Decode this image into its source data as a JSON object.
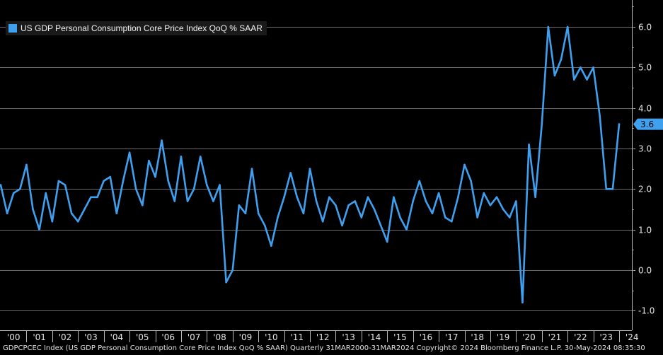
{
  "legend": {
    "label": "US GDP Personal Consumption Core Price Index QoQ % SAAR",
    "color": "#3fa0f0"
  },
  "footer": {
    "text": "GDPCPCEC Index (US GDP Personal Consumption Core Price Index QoQ % SAAR)  Quarterly 31MAR2000-31MAR2024 Copyright© 2024 Bloomberg Finance L.P.  30-May-2024 08:35:30"
  },
  "colors": {
    "line": "#3fa0f0",
    "grid": "#6a6a6a",
    "badge": "#3fa0f0",
    "background": "#000000"
  },
  "chart_data": {
    "type": "line",
    "title": "US GDP Personal Consumption Core Price Index QoQ % SAAR",
    "xlabel": "",
    "ylabel": "",
    "ylim": [
      -1.5,
      6.6
    ],
    "yticks": [
      -1.0,
      0.0,
      1.0,
      2.0,
      3.0,
      4.0,
      5.0,
      6.0
    ],
    "ytick_labels": [
      "-1.0",
      "0.0",
      "1.0",
      "2.0",
      "3.0",
      "4.0",
      "5.0",
      "6.0"
    ],
    "xticks": [
      "'00",
      "'01",
      "'02",
      "'03",
      "'04",
      "'05",
      "'06",
      "'07",
      "'08",
      "'09",
      "'10",
      "'11",
      "'12",
      "'13",
      "'14",
      "'15",
      "'16",
      "'17",
      "'18",
      "'19",
      "'20",
      "'21",
      "'22",
      "'23",
      "'24"
    ],
    "last_value_label": "3.6",
    "series": [
      {
        "name": "US GDP Personal Consumption Core Price Index QoQ % SAAR",
        "values": [
          2.1,
          1.4,
          1.9,
          2.0,
          2.6,
          1.5,
          1.0,
          1.9,
          1.2,
          2.2,
          2.1,
          1.4,
          1.2,
          1.5,
          1.8,
          1.8,
          2.2,
          2.3,
          1.4,
          2.2,
          2.9,
          2.0,
          1.6,
          2.7,
          2.3,
          3.2,
          2.2,
          1.7,
          2.8,
          1.7,
          2.0,
          2.8,
          2.1,
          1.7,
          2.1,
          -0.3,
          0.0,
          1.6,
          1.4,
          2.5,
          1.4,
          1.1,
          0.6,
          1.3,
          1.8,
          2.4,
          1.8,
          1.4,
          2.5,
          1.7,
          1.2,
          1.8,
          1.6,
          1.1,
          1.6,
          1.7,
          1.3,
          1.8,
          1.5,
          1.1,
          0.7,
          1.8,
          1.3,
          1.0,
          1.7,
          2.2,
          1.7,
          1.4,
          1.9,
          1.3,
          1.2,
          1.8,
          2.6,
          2.2,
          1.3,
          1.9,
          1.6,
          1.8,
          1.5,
          1.3,
          1.7,
          -0.8,
          3.1,
          1.8,
          3.6,
          6.0,
          4.8,
          5.2,
          6.0,
          4.7,
          5.0,
          4.7,
          5.0,
          3.8,
          2.0,
          2.0,
          3.6
        ]
      }
    ]
  }
}
